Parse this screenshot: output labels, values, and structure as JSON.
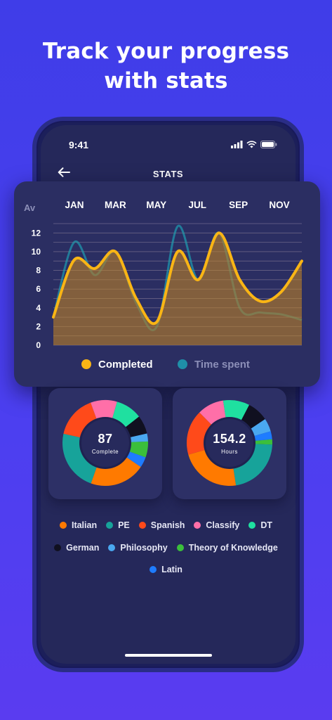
{
  "headline": {
    "line1": "Track your progress",
    "line2": "with stats"
  },
  "status_bar": {
    "time": "9:41"
  },
  "header": {
    "title": "STATS",
    "back_icon": "arrow-left-icon"
  },
  "chart_data": {
    "type": "area",
    "categories": [
      "JAN",
      "MAR",
      "MAY",
      "JUL",
      "SEP",
      "NOV"
    ],
    "ylabel": "Av",
    "yticks": [
      0,
      2,
      4,
      6,
      8,
      10,
      12
    ],
    "ylim": [
      0,
      13
    ],
    "grid": true,
    "x": [
      0,
      1,
      2,
      3,
      4,
      5,
      6,
      7,
      8,
      9,
      10,
      11,
      12
    ],
    "series": [
      {
        "name": "Completed",
        "color": "#f9b515",
        "values": [
          3,
          9.1,
          8.2,
          10,
          5,
          2.5,
          10,
          7,
          12,
          7,
          4.7,
          5.7,
          9
        ]
      },
      {
        "name": "Time spent",
        "color": "#1f8fa8",
        "values": [
          3,
          11,
          7.5,
          10,
          4.5,
          2,
          12.7,
          7,
          12,
          4,
          3.5,
          3.3,
          2.7
        ]
      }
    ],
    "legend": "bottom"
  },
  "donuts": [
    {
      "value": "87",
      "caption": "Complete"
    },
    {
      "value": "154.2",
      "caption": "Hours"
    }
  ],
  "subjects": [
    {
      "name": "Italian",
      "color": "#ff7a00"
    },
    {
      "name": "PE",
      "color": "#17a39a"
    },
    {
      "name": "Spanish",
      "color": "#ff4a1a"
    },
    {
      "name": "Classify",
      "color": "#ff6fa8"
    },
    {
      "name": "DT",
      "color": "#1fe0a0"
    },
    {
      "name": "German",
      "color": "#101020"
    },
    {
      "name": "Philosophy",
      "color": "#4aa8f0"
    },
    {
      "name": "Theory of Knowledge",
      "color": "#3bbf3b"
    },
    {
      "name": "Latin",
      "color": "#1e7cff"
    }
  ]
}
